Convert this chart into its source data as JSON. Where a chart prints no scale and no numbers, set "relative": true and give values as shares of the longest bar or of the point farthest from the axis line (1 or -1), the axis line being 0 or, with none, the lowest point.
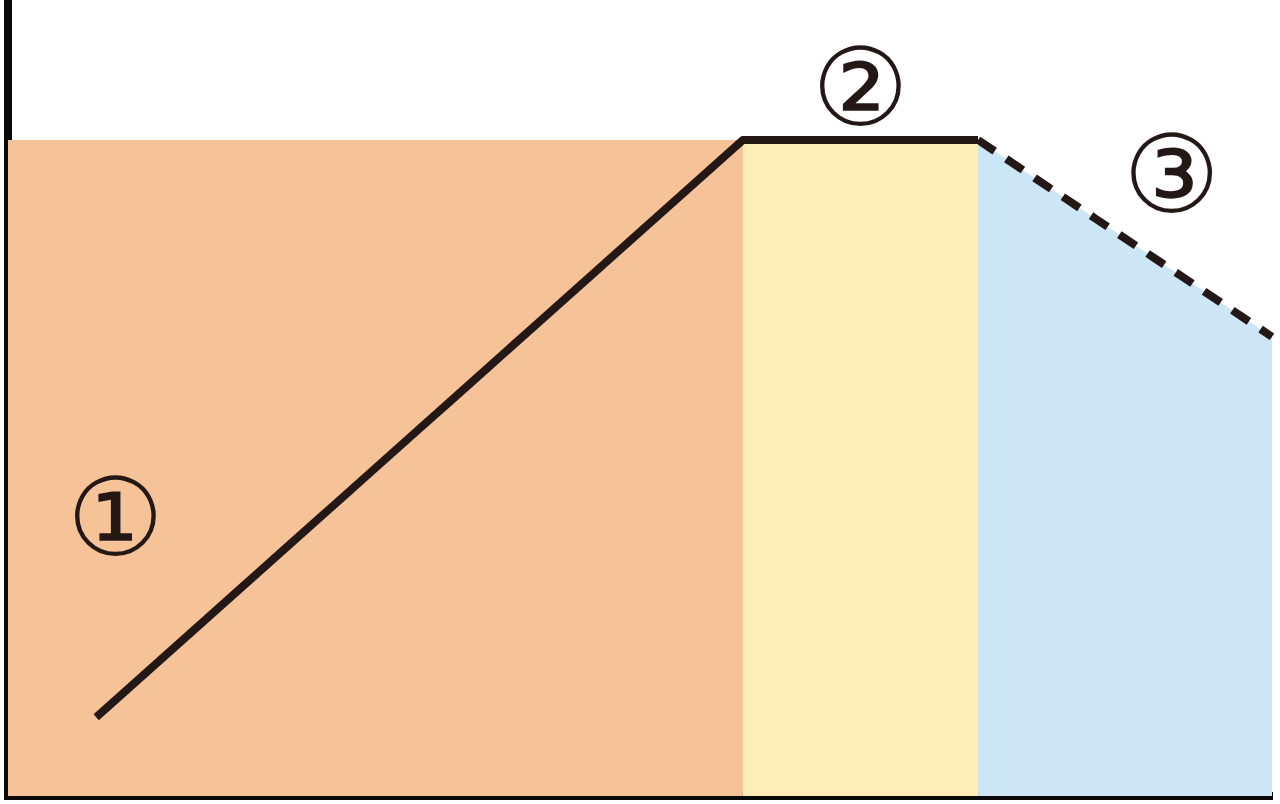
{
  "chart_data": {
    "type": "line",
    "relative": true,
    "marker": "none",
    "categories": [
      null,
      null,
      null,
      null,
      null,
      null,
      null,
      null,
      null,
      null,
      null,
      null,
      null,
      null,
      null,
      null,
      null,
      null,
      null,
      null,
      null,
      null,
      null,
      null,
      null,
      null,
      null,
      null,
      null,
      null,
      null,
      null,
      null,
      null,
      null,
      null,
      null,
      null,
      null,
      null,
      null,
      null,
      null,
      null
    ],
    "series": [
      {
        "type": "area",
        "name": "①",
        "color": "#f5c397",
        "values": [
          1,
          1,
          1,
          1,
          1,
          1,
          1,
          1,
          1,
          1,
          1,
          1,
          1,
          1,
          1,
          1,
          1,
          1,
          1,
          1,
          1,
          1,
          1,
          1,
          1,
          1,
          null,
          null,
          null,
          null,
          null,
          null,
          null,
          null,
          null,
          null,
          null,
          null,
          null,
          null,
          null,
          null,
          null,
          null
        ]
      },
      {
        "type": "area",
        "name": "②",
        "color": "#fdeeb7",
        "values": [
          null,
          null,
          null,
          null,
          null,
          null,
          null,
          null,
          null,
          null,
          null,
          null,
          null,
          null,
          null,
          null,
          null,
          null,
          null,
          null,
          null,
          null,
          null,
          null,
          null,
          1,
          1,
          1,
          1,
          1,
          1,
          1,
          1,
          1,
          null,
          null,
          null,
          null,
          null,
          null,
          null,
          null,
          null,
          null
        ]
      },
      {
        "type": "area",
        "name": "③",
        "color": "#cce6f6",
        "line_style": "dashed",
        "values": [
          null,
          null,
          null,
          null,
          null,
          null,
          null,
          null,
          null,
          null,
          null,
          null,
          null,
          null,
          null,
          null,
          null,
          null,
          null,
          null,
          null,
          null,
          null,
          null,
          null,
          null,
          null,
          null,
          null,
          null,
          null,
          null,
          null,
          1,
          0.97,
          0.94,
          0.91,
          0.88,
          0.85,
          0.82,
          0.79,
          0.76,
          0.73,
          0.7
        ]
      },
      {
        "type": "line",
        "color": "#231815",
        "line_style": "solid",
        "values": [
          null,
          null,
          null,
          0.12,
          0.16,
          0.2,
          0.24,
          0.28,
          0.32,
          0.36,
          0.4,
          0.44,
          0.48,
          0.52,
          0.56,
          0.6,
          0.64,
          0.68,
          0.72,
          0.76,
          0.8,
          0.84,
          0.88,
          0.92,
          0.96,
          1,
          1,
          1,
          1,
          1,
          1,
          1,
          1,
          1,
          null,
          null,
          null,
          null,
          null,
          null,
          null,
          null,
          null,
          null
        ]
      }
    ]
  }
}
